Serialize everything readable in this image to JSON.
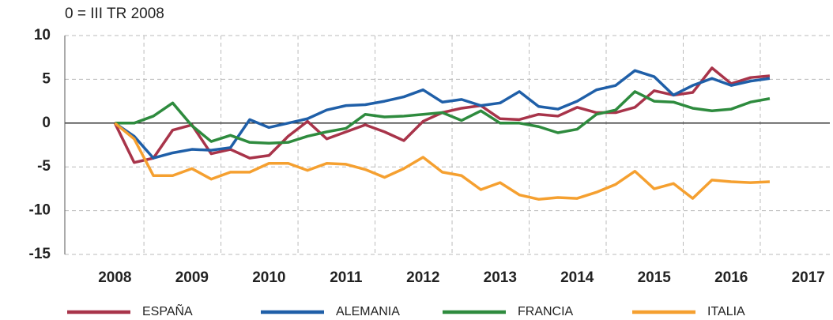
{
  "chart_data": {
    "type": "line",
    "subtitle": "0 = III TR 2008",
    "x": [
      2008,
      2008.25,
      2008.5,
      2008.75,
      2009,
      2009.25,
      2009.5,
      2009.75,
      2010,
      2010.25,
      2010.5,
      2010.75,
      2011,
      2011.25,
      2011.5,
      2011.75,
      2012,
      2012.25,
      2012.5,
      2012.75,
      2013,
      2013.25,
      2013.5,
      2013.75,
      2014,
      2014.25,
      2014.5,
      2014.75,
      2015,
      2015.25,
      2015.5,
      2015.75,
      2016,
      2016.25,
      2016.5
    ],
    "series": [
      {
        "name": "ESPAÑA",
        "color": "#a8344a",
        "values": [
          0,
          -4.5,
          -4.0,
          -0.8,
          -0.2,
          -3.5,
          -3.0,
          -4.0,
          -3.7,
          -1.5,
          0.2,
          -1.8,
          -1.0,
          -0.2,
          -1.0,
          -2.0,
          0.2,
          1.2,
          1.7,
          2.0,
          0.5,
          0.4,
          1.0,
          0.8,
          1.8,
          1.2,
          1.2,
          1.8,
          3.7,
          3.2,
          3.5,
          6.3,
          4.5,
          5.2,
          5.4
        ]
      },
      {
        "name": "ALEMANIA",
        "color": "#1f5fa8",
        "values": [
          0,
          -1.5,
          -4.0,
          -3.4,
          -3.0,
          -3.1,
          -2.8,
          0.4,
          -0.5,
          0,
          0.5,
          1.5,
          2.0,
          2.1,
          2.5,
          3.0,
          3.8,
          2.4,
          2.7,
          2.0,
          2.3,
          3.6,
          1.9,
          1.6,
          2.5,
          3.8,
          4.3,
          6.0,
          5.3,
          3.2,
          4.3,
          5.1,
          4.3,
          4.8,
          5.1
        ]
      },
      {
        "name": "FRANCIA",
        "color": "#2e8b3e",
        "values": [
          0,
          0,
          0.8,
          2.3,
          -0.3,
          -2.1,
          -1.4,
          -2.2,
          -2.3,
          -2.2,
          -1.5,
          -1.0,
          -0.6,
          1.0,
          0.7,
          0.8,
          1.0,
          1.2,
          0.3,
          1.4,
          0,
          0,
          -0.4,
          -1.1,
          -0.7,
          1.0,
          1.5,
          3.6,
          2.5,
          2.4,
          1.7,
          1.4,
          1.6,
          2.4,
          2.8
        ]
      },
      {
        "name": "ITALIA",
        "color": "#f5a030",
        "values": [
          0,
          -1.8,
          -6.0,
          -6.0,
          -5.2,
          -6.4,
          -5.6,
          -5.6,
          -4.6,
          -4.6,
          -5.4,
          -4.6,
          -4.7,
          -5.3,
          -6.2,
          -5.2,
          -3.9,
          -5.6,
          -6.0,
          -7.6,
          -6.8,
          -8.2,
          -8.7,
          -8.5,
          -8.6,
          -7.9,
          -7.0,
          -5.5,
          -7.5,
          -6.9,
          -8.6,
          -6.5,
          -6.7,
          -6.8,
          -6.7
        ]
      }
    ],
    "xlim": [
      2007.35,
      2017.28
    ],
    "xticks": [
      2008,
      2009,
      2010,
      2011,
      2012,
      2013,
      2014,
      2015,
      2016,
      2017
    ],
    "ylim": [
      -15,
      10
    ],
    "yticks": [
      -15,
      -10,
      -5,
      0,
      5,
      10
    ],
    "grid": true,
    "legend": "bottom"
  }
}
